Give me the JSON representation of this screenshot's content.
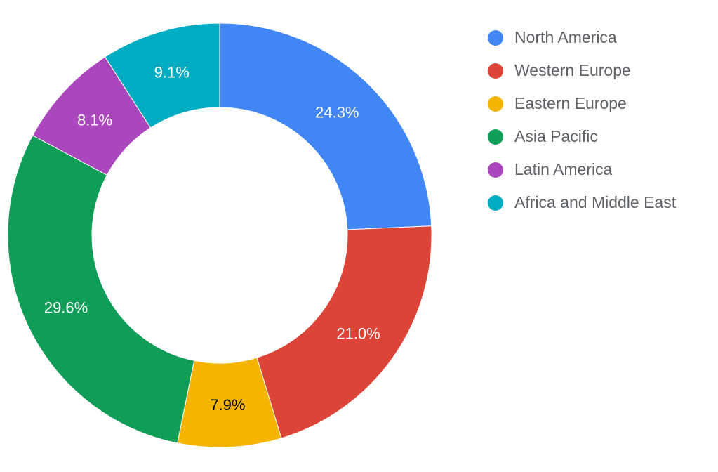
{
  "chart_data": {
    "type": "pie",
    "donut": true,
    "title": "",
    "legend_position": "right",
    "categories": [
      "North America",
      "Western Europe",
      "Eastern Europe",
      "Asia Pacific",
      "Latin America",
      "Africa and Middle East"
    ],
    "values": [
      24.3,
      21.0,
      7.9,
      29.6,
      8.1,
      9.1
    ],
    "labels": [
      "24.3%",
      "21.0%",
      "7.9%",
      "29.6%",
      "8.1%",
      "9.1%"
    ],
    "colors": [
      "#4285f4",
      "#db4437",
      "#f4b400",
      "#0f9d58",
      "#ab47bc",
      "#00acc1"
    ],
    "label_colors": [
      "#ffffff",
      "#ffffff",
      "#000000",
      "#ffffff",
      "#ffffff",
      "#ffffff"
    ]
  }
}
